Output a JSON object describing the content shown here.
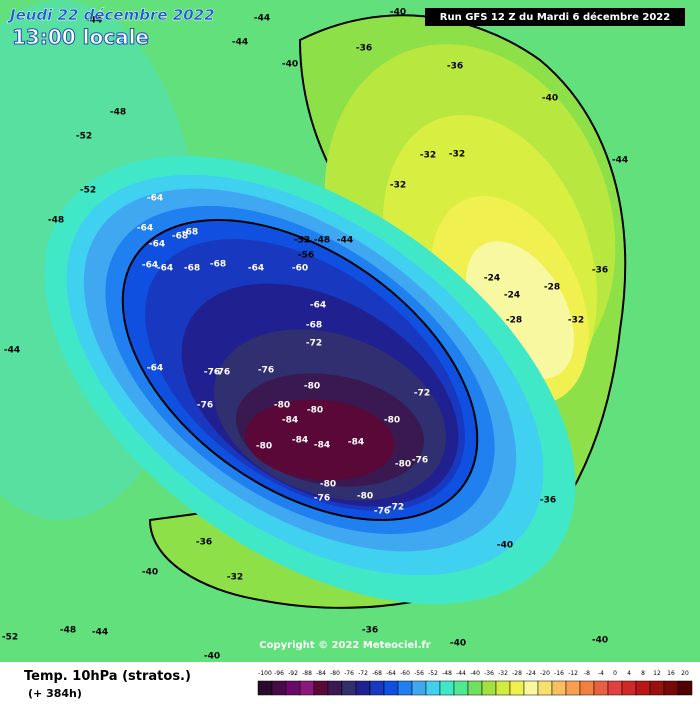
{
  "header": {
    "date": "Jeudi 22 décembre 2022",
    "time": "13:00 locale",
    "run": "Run GFS 12 Z du Mardi 6 décembre 2022"
  },
  "footer": {
    "title": "Temp. 10hPa (stratos.)",
    "lead": "(+ 384h)",
    "copyright": "Copyright © 2022 Meteociel.fr"
  },
  "scale": {
    "values": [
      -100,
      -96,
      -92,
      -88,
      -84,
      -80,
      -76,
      -72,
      -68,
      -64,
      -60,
      -56,
      -52,
      -48,
      -44,
      -40,
      -36,
      -32,
      -28,
      -24,
      -20,
      -16,
      -12,
      -8,
      -4,
      0,
      4,
      8,
      12,
      16,
      20
    ],
    "colors": [
      "#2a0a2a",
      "#4a0a4a",
      "#6a0a6a",
      "#8a1a7a",
      "#5a0838",
      "#3a1850",
      "#303070",
      "#202090",
      "#1838c0",
      "#1050e0",
      "#2080f0",
      "#40a8f0",
      "#40d0f0",
      "#40e8c8",
      "#50e890",
      "#70e060",
      "#a0e040",
      "#d0ec40",
      "#f0f050",
      "#f8f8a0",
      "#f8e070",
      "#f8c060",
      "#f8a050",
      "#f08040",
      "#e86040",
      "#e04040",
      "#d02828",
      "#b81818",
      "#981010",
      "#780808",
      "#500000"
    ]
  },
  "map_labels": [
    -64,
    -64,
    -64,
    -68,
    -68,
    -64,
    -64,
    -68,
    -68,
    -64,
    -60,
    -56,
    -52,
    -48,
    -44,
    -64,
    -68,
    -72,
    -64,
    -76,
    -76,
    -76,
    -80,
    -72,
    -76,
    -80,
    -80,
    -80,
    -84,
    -84,
    -84,
    -84,
    -80,
    -80,
    -76,
    -80,
    -76,
    -80,
    -76,
    -72,
    -40,
    -36,
    -36,
    -40,
    -32,
    -32,
    -32,
    -24,
    -28,
    -24,
    -28,
    -32,
    -36,
    -44,
    -44,
    -48,
    -52,
    -52,
    -48,
    -44,
    -44,
    -44,
    -40,
    -36,
    -32,
    -36,
    -40,
    -40,
    -40,
    -52,
    -48,
    -44,
    -40,
    -36,
    -40
  ]
}
